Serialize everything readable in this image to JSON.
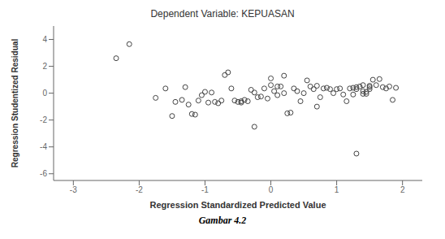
{
  "chart_data": {
    "type": "scatter",
    "title": "Dependent Variable: KEPUASAN",
    "caption": "Gambar 4.2",
    "xlabel": "Regression Standardized Predicted Value",
    "ylabel": "Regression Studentized Residual",
    "xlim": [
      -3.3,
      2.3
    ],
    "ylim": [
      -6.5,
      5.0
    ],
    "xticks": [
      -3,
      -2,
      -1,
      0,
      1,
      2
    ],
    "yticks": [
      -6,
      -4,
      -2,
      0,
      2,
      4
    ],
    "grid": false,
    "color": "#444444",
    "marker": "open_circle",
    "x": [
      -2.35,
      -2.15,
      -1.75,
      -1.6,
      -1.5,
      -1.45,
      -1.35,
      -1.3,
      -1.25,
      -1.2,
      -1.15,
      -1.1,
      -1.05,
      -1.0,
      -0.95,
      -0.9,
      -0.85,
      -0.8,
      -0.75,
      -0.7,
      -0.65,
      -0.6,
      -0.55,
      -0.5,
      -0.45,
      -0.45,
      -0.4,
      -0.35,
      -0.3,
      -0.25,
      -0.25,
      -0.2,
      -0.15,
      -0.1,
      -0.05,
      0.0,
      0.0,
      0.05,
      0.1,
      0.1,
      0.15,
      0.2,
      0.2,
      0.25,
      0.3,
      0.35,
      0.4,
      0.45,
      0.5,
      0.55,
      0.6,
      0.65,
      0.7,
      0.7,
      0.75,
      0.8,
      0.85,
      0.9,
      0.95,
      1.0,
      1.05,
      1.1,
      1.15,
      1.2,
      1.25,
      1.25,
      1.3,
      1.3,
      1.3,
      1.35,
      1.4,
      1.4,
      1.4,
      1.45,
      1.45,
      1.5,
      1.5,
      1.5,
      1.55,
      1.6,
      1.65,
      1.7,
      1.75,
      1.8,
      1.85,
      1.9
    ],
    "values": [
      2.6,
      3.65,
      -0.35,
      0.35,
      -1.7,
      -0.65,
      -0.5,
      0.45,
      -0.85,
      -1.55,
      -1.6,
      -0.55,
      -0.15,
      0.1,
      -0.7,
      0.05,
      -0.65,
      -0.75,
      -0.55,
      1.35,
      1.55,
      0.35,
      -0.55,
      -0.65,
      -0.6,
      -0.7,
      -0.5,
      -0.6,
      0.25,
      0.05,
      -2.5,
      -0.3,
      -0.25,
      0.35,
      -0.4,
      1.1,
      0.6,
      0.15,
      0.5,
      -0.15,
      0.5,
      1.3,
      0.0,
      -1.5,
      -1.45,
      0.35,
      0.15,
      -0.6,
      0.0,
      0.95,
      0.5,
      0.3,
      0.55,
      -1.0,
      -0.3,
      0.35,
      0.4,
      0.3,
      0.0,
      0.3,
      0.35,
      -0.1,
      -0.6,
      0.35,
      0.4,
      -0.1,
      0.3,
      0.45,
      -4.5,
      0.5,
      0.6,
      -0.05,
      0.15,
      0.1,
      -0.05,
      0.55,
      0.45,
      0.3,
      1.0,
      0.6,
      1.05,
      0.45,
      0.35,
      0.5,
      -0.5,
      0.4
    ]
  }
}
